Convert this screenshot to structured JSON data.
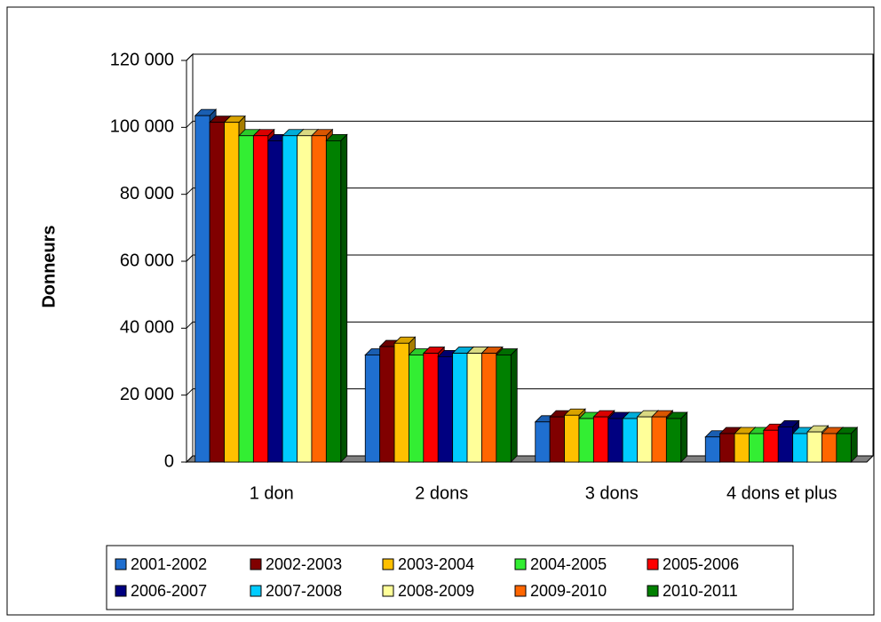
{
  "chart_data": {
    "type": "bar3d",
    "y_axis_label": "Donneurs",
    "categories": [
      "1  don",
      "2 dons",
      "3 dons",
      "4 dons et plus"
    ],
    "ylim": [
      0,
      120000
    ],
    "yticks": [
      0,
      {
        "value": 20000,
        "label": "20 000"
      },
      {
        "value": 40000,
        "label": "40 000"
      },
      {
        "value": 60000,
        "label": "60 000"
      },
      {
        "value": 80000,
        "label": "80 000"
      },
      {
        "value": 100000,
        "label": "100 000"
      },
      {
        "value": 120000,
        "label": "120 000"
      }
    ],
    "grid": true,
    "legend": "bottom",
    "series": [
      {
        "name": "2001-2002",
        "color": "#1f6fd0",
        "values": [
          103500,
          32000,
          12000,
          7500
        ]
      },
      {
        "name": "2002-2003",
        "color": "#800000",
        "values": [
          101500,
          34500,
          13500,
          8500
        ]
      },
      {
        "name": "2003-2004",
        "color": "#ffc000",
        "values": [
          101500,
          35500,
          14000,
          8500
        ]
      },
      {
        "name": "2004-2005",
        "color": "#33ee33",
        "values": [
          97500,
          32000,
          13000,
          8500
        ]
      },
      {
        "name": "2005-2006",
        "color": "#ff0000",
        "values": [
          97500,
          32500,
          13500,
          9500
        ]
      },
      {
        "name": "2006-2007",
        "color": "#000080",
        "values": [
          96000,
          31500,
          13000,
          10500
        ]
      },
      {
        "name": "2007-2008",
        "color": "#00ccff",
        "values": [
          97500,
          32500,
          13000,
          8500
        ]
      },
      {
        "name": "2008-2009",
        "color": "#ffff99",
        "values": [
          97500,
          32500,
          13500,
          9000
        ]
      },
      {
        "name": "2009-2010",
        "color": "#ff6600",
        "values": [
          97500,
          32500,
          13500,
          8500
        ]
      },
      {
        "name": "2010-2011",
        "color": "#008000",
        "values": [
          96000,
          32000,
          13000,
          8500
        ]
      }
    ]
  }
}
